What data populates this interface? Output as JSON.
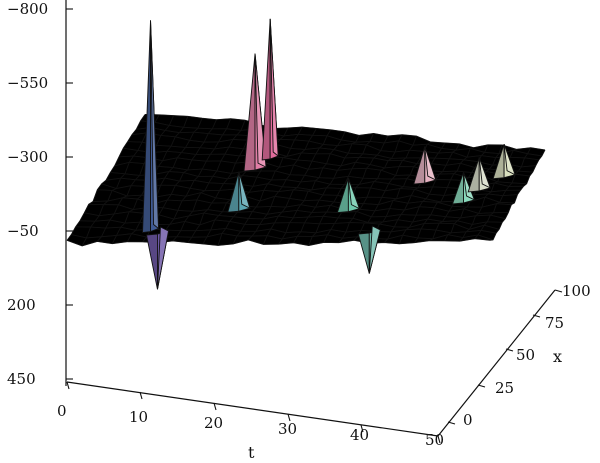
{
  "chart_data": {
    "type": "surface",
    "z_ticks": [
      "−800",
      "−550",
      "−300",
      "−50",
      "200",
      "450"
    ],
    "t_ticks": [
      "0",
      "10",
      "20",
      "30",
      "40",
      "50"
    ],
    "x_ticks": [
      "0",
      "25",
      "50",
      "75",
      "100"
    ],
    "xlabel": "t",
    "ylabel": "x",
    "zlabel": "",
    "peaks": [
      {
        "t": 9,
        "x": 10,
        "z": -760,
        "color": "#3f5a93"
      },
      {
        "t": 10,
        "x": 8,
        "z": 140,
        "color": "#6c56a5"
      },
      {
        "t": 18,
        "x": 28,
        "z": -180,
        "color": "#5aa5b1"
      },
      {
        "t": 17,
        "x": 63,
        "z": -440,
        "color": "#e17ea6"
      },
      {
        "t": 18,
        "x": 73,
        "z": -520,
        "color": "#e06b9b"
      },
      {
        "t": 31,
        "x": 30,
        "z": -160,
        "color": "#6ec9ac"
      },
      {
        "t": 35,
        "x": 10,
        "z": 90,
        "color": "#6bb7a8"
      },
      {
        "t": 38,
        "x": 60,
        "z": -170,
        "color": "#e5b2c1"
      },
      {
        "t": 44,
        "x": 42,
        "z": -150,
        "color": "#8ad9bc"
      },
      {
        "t": 45,
        "x": 55,
        "z": -160,
        "color": "#d8ddc8"
      },
      {
        "t": 47,
        "x": 70,
        "z": -160,
        "color": "#d9dfbe"
      }
    ]
  }
}
